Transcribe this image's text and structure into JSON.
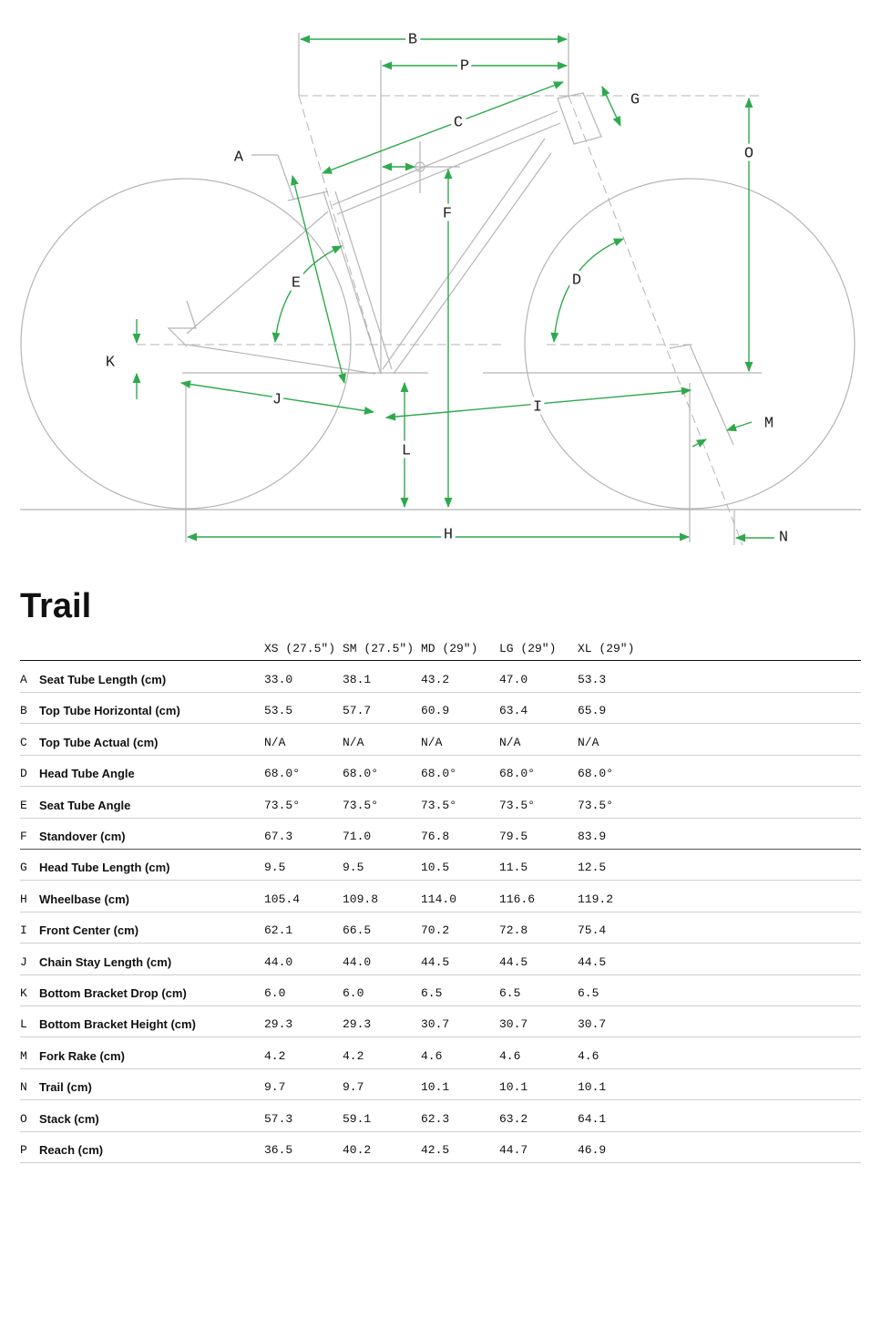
{
  "diagram": {
    "labels": [
      "B",
      "P",
      "G",
      "C",
      "A",
      "O",
      "F",
      "E",
      "D",
      "K",
      "J",
      "I",
      "M",
      "L",
      "H",
      "N"
    ]
  },
  "title": "Trail",
  "table": {
    "columns": [
      "XS (27.5\")",
      "SM (27.5\")",
      "MD (29\")",
      "LG (29\")",
      "XL (29\")"
    ],
    "rows": [
      [
        "A",
        "Seat Tube Length (cm)",
        "33.0",
        "38.1",
        "43.2",
        "47.0",
        "53.3"
      ],
      [
        "B",
        "Top Tube Horizontal (cm)",
        "53.5",
        "57.7",
        "60.9",
        "63.4",
        "65.9"
      ],
      [
        "C",
        "Top Tube Actual (cm)",
        "N/A",
        "N/A",
        "N/A",
        "N/A",
        "N/A"
      ],
      [
        "D",
        "Head Tube Angle",
        "68.0°",
        "68.0°",
        "68.0°",
        "68.0°",
        "68.0°"
      ],
      [
        "E",
        "Seat Tube Angle",
        "73.5°",
        "73.5°",
        "73.5°",
        "73.5°",
        "73.5°"
      ],
      [
        "F",
        "Standover (cm)",
        "67.3",
        "71.0",
        "76.8",
        "79.5",
        "83.9"
      ],
      [
        "G",
        "Head Tube Length (cm)",
        "9.5",
        "9.5",
        "10.5",
        "11.5",
        "12.5"
      ],
      [
        "H",
        "Wheelbase (cm)",
        "105.4",
        "109.8",
        "114.0",
        "116.6",
        "119.2"
      ],
      [
        "I",
        "Front Center (cm)",
        "62.1",
        "66.5",
        "70.2",
        "72.8",
        "75.4"
      ],
      [
        "J",
        "Chain Stay Length (cm)",
        "44.0",
        "44.0",
        "44.5",
        "44.5",
        "44.5"
      ],
      [
        "K",
        "Bottom Bracket Drop (cm)",
        "6.0",
        "6.0",
        "6.5",
        "6.5",
        "6.5"
      ],
      [
        "L",
        "Bottom Bracket Height (cm)",
        "29.3",
        "29.3",
        "30.7",
        "30.7",
        "30.7"
      ],
      [
        "M",
        "Fork Rake (cm)",
        "4.2",
        "4.2",
        "4.6",
        "4.6",
        "4.6"
      ],
      [
        "N",
        "Trail (cm)",
        "9.7",
        "9.7",
        "10.1",
        "10.1",
        "10.1"
      ],
      [
        "O",
        "Stack (cm)",
        "57.3",
        "59.1",
        "62.3",
        "63.2",
        "64.1"
      ],
      [
        "P",
        "Reach (cm)",
        "36.5",
        "40.2",
        "42.5",
        "44.7",
        "46.9"
      ]
    ]
  }
}
